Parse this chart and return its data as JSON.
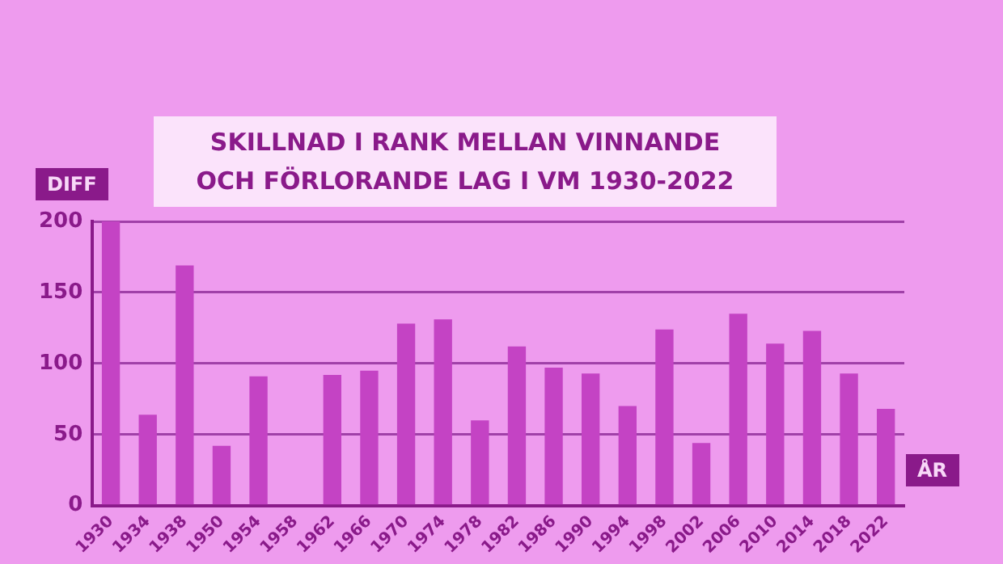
{
  "chart_data": {
    "type": "bar",
    "title": "SKILLNAD I RANK MELLAN VINNANDE\nOCH FÖRLORANDE LAG I VM 1930-2022",
    "ylabel": "DIFF",
    "xlabel": "ÅR",
    "categories": [
      "1930",
      "1934",
      "1938",
      "1950",
      "1954",
      "1958",
      "1962",
      "1966",
      "1970",
      "1974",
      "1978",
      "1982",
      "1986",
      "1990",
      "1994",
      "1998",
      "2002",
      "2006",
      "2010",
      "2014",
      "2018",
      "2022"
    ],
    "values": [
      200,
      64,
      169,
      42,
      91,
      null,
      92,
      95,
      128,
      131,
      60,
      112,
      97,
      93,
      70,
      124,
      44,
      135,
      114,
      123,
      93,
      68
    ],
    "color": "#c443c4",
    "ylim": [
      0,
      200
    ],
    "yticks": [
      0,
      50,
      100,
      150,
      200
    ],
    "grid": "y"
  }
}
